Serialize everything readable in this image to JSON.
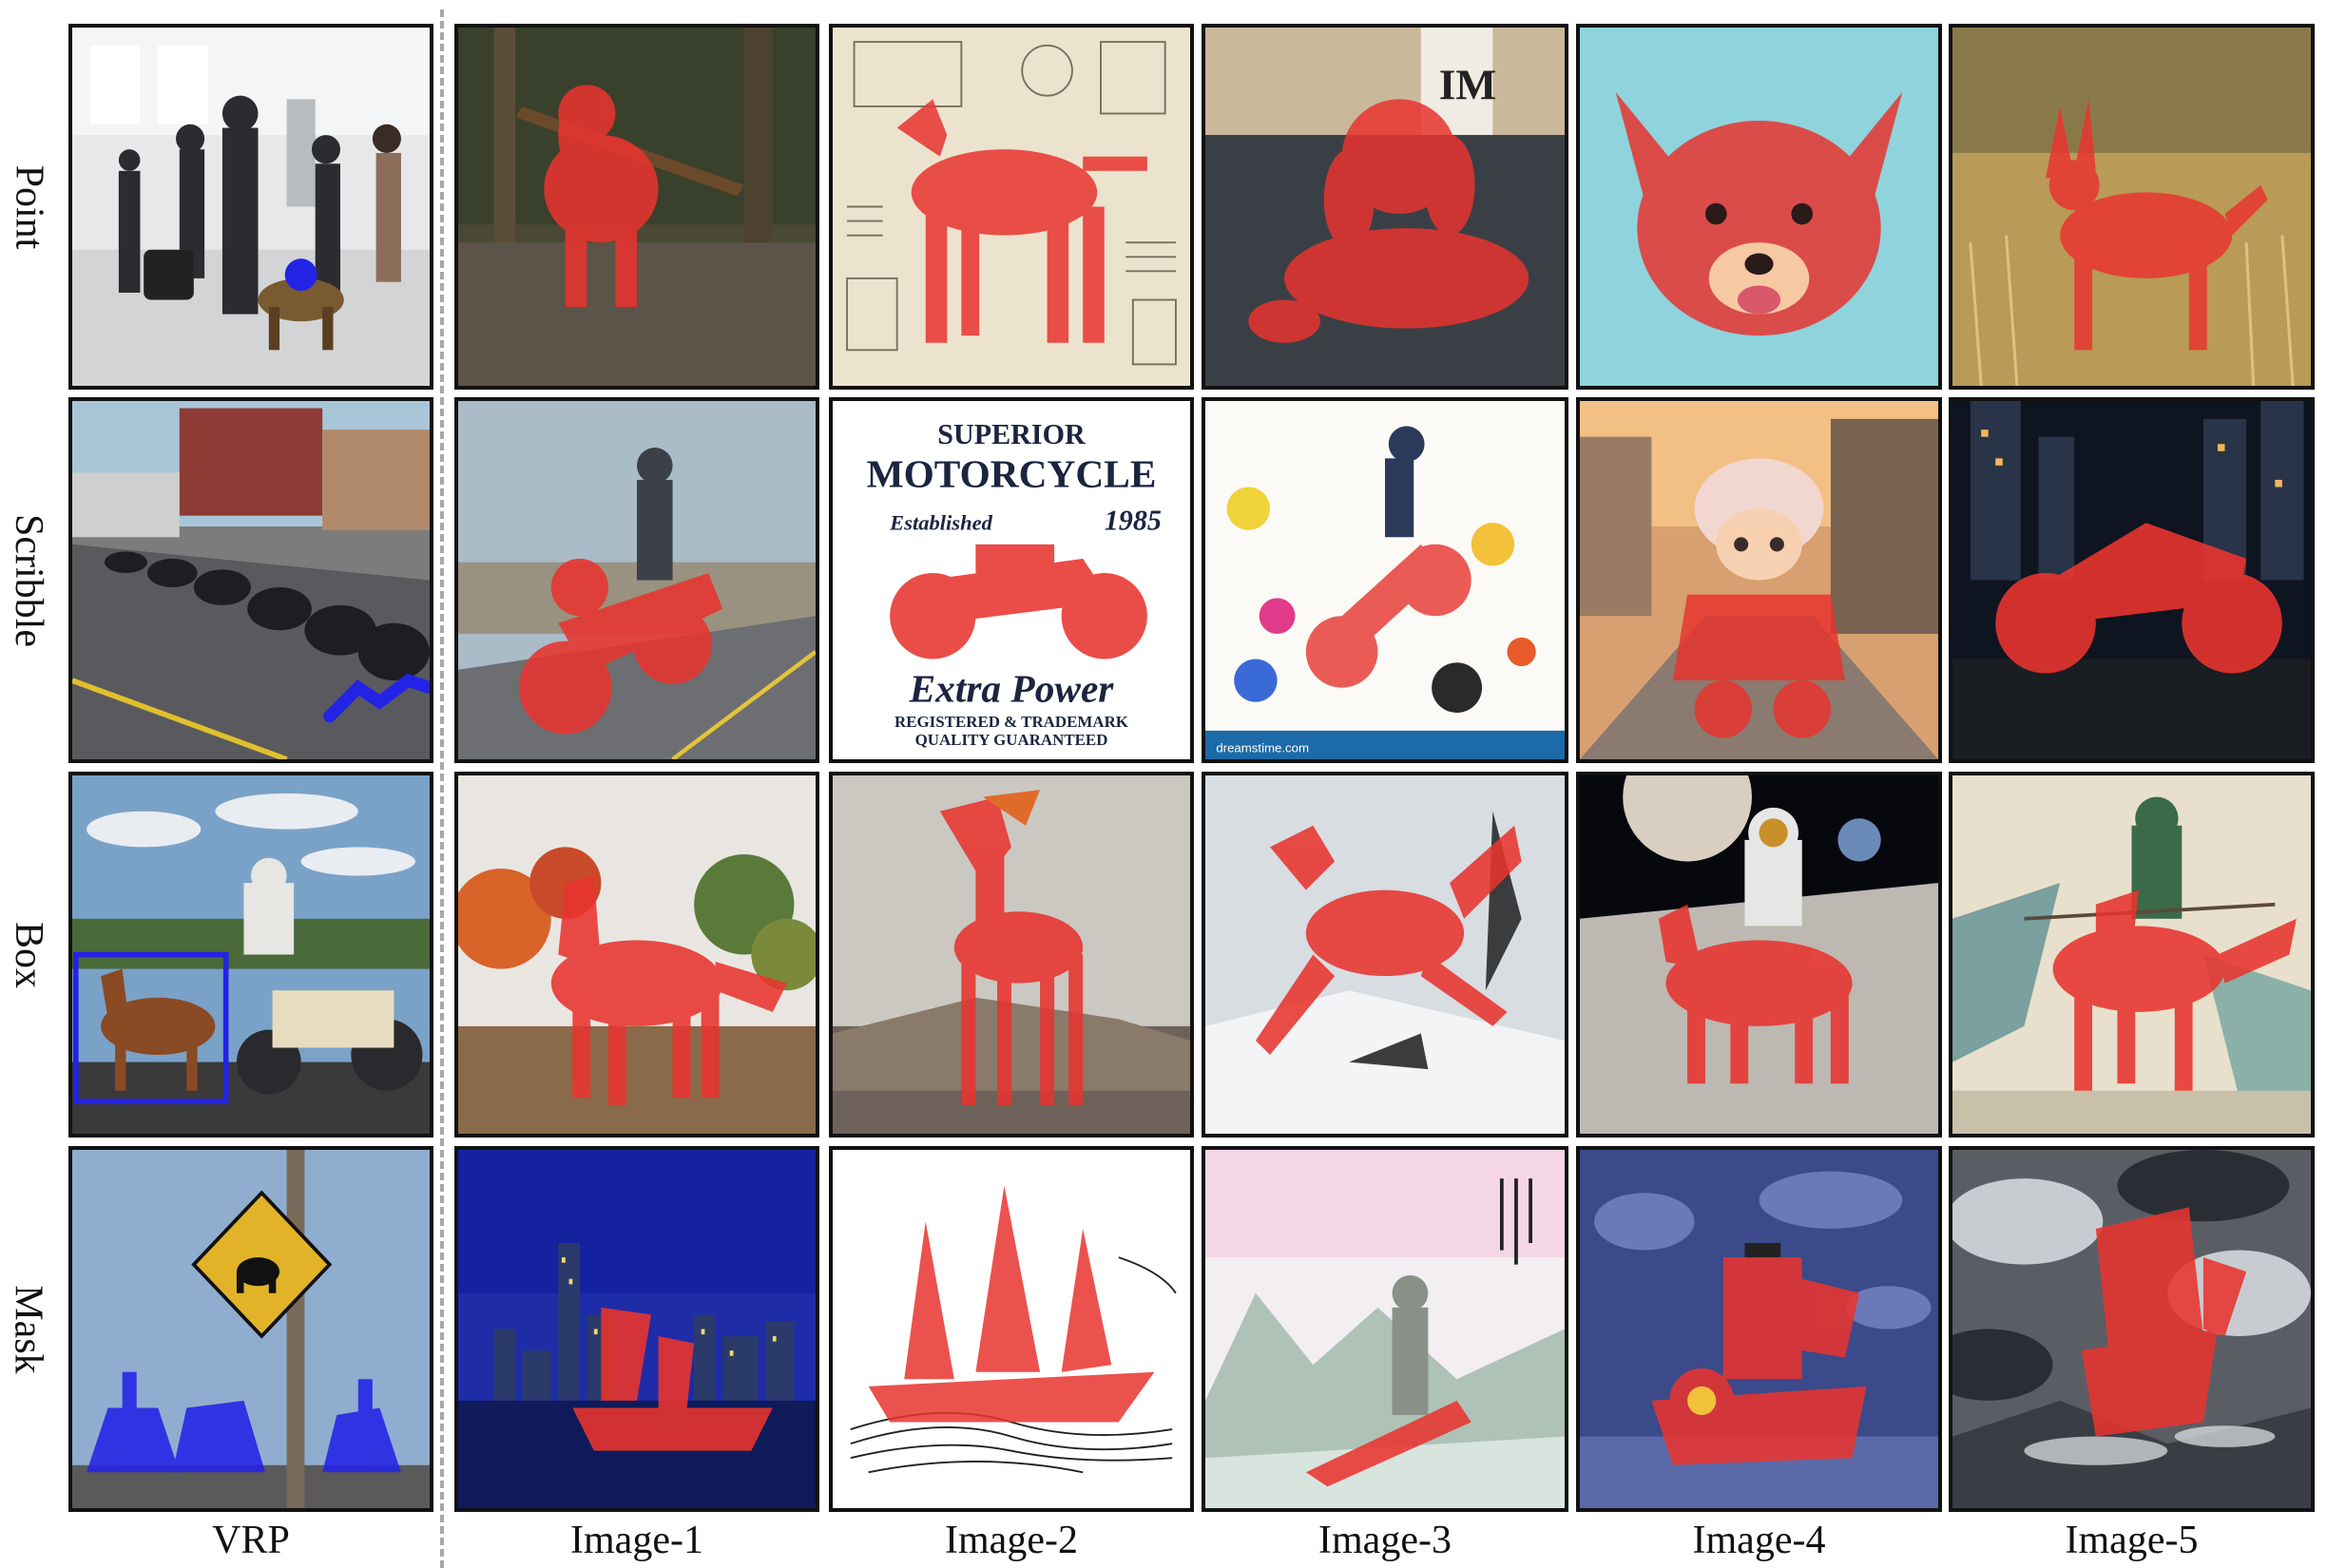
{
  "rows": [
    {
      "id": "point",
      "label": "Point",
      "target": "dog"
    },
    {
      "id": "scribble",
      "label": "Scribble",
      "target": "motorcycle"
    },
    {
      "id": "box",
      "label": "Box",
      "target": "horse"
    },
    {
      "id": "mask",
      "label": "Mask",
      "target": "boat"
    }
  ],
  "columns": [
    "VRP",
    "Image-1",
    "Image-2",
    "Image-3",
    "Image-4",
    "Image-5"
  ],
  "colors": {
    "prompt_blue": "#2323e6",
    "segmentation_red": "#e8342f",
    "frame": "#111111",
    "divider": "#a8a8a8"
  },
  "embedded_text": {
    "moto_poster_line1": "SUPERIOR",
    "moto_poster_line2": "MOTORCYCLE",
    "moto_poster_line3": "Established",
    "moto_poster_year": "1985",
    "moto_poster_line4": "Extra Power",
    "moto_poster_line5": "REGISTERED & TRADEMARK",
    "moto_poster_line6": "QUALITY GUARANTEED",
    "im_sign": "IM",
    "watermark": "dreamstime.com"
  }
}
